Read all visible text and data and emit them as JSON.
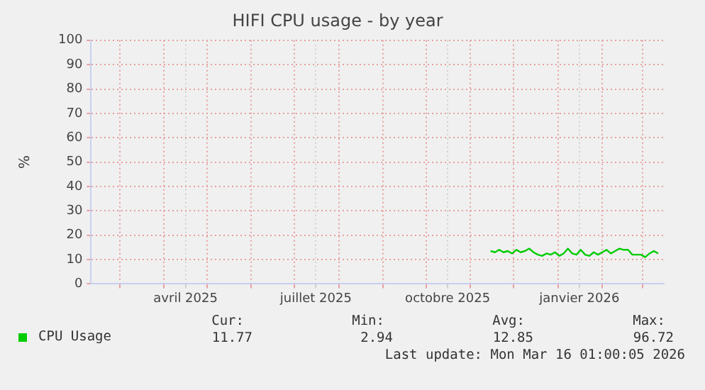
{
  "chart_data": {
    "type": "line",
    "title": "HIFI CPU usage - by year",
    "ylabel": "%",
    "xlim": [
      "2025-02-09",
      "2026-03-16"
    ],
    "xticks": [
      {
        "value": "2025-03-01",
        "label": null
      },
      {
        "value": "2025-04-01",
        "label": null
      },
      {
        "value": "2025-04-16",
        "label": "avril 2025"
      },
      {
        "value": "2025-05-01",
        "label": null
      },
      {
        "value": "2025-06-01",
        "label": null
      },
      {
        "value": "2025-07-01",
        "label": null
      },
      {
        "value": "2025-07-16",
        "label": "juillet 2025"
      },
      {
        "value": "2025-08-01",
        "label": null
      },
      {
        "value": "2025-09-01",
        "label": null
      },
      {
        "value": "2025-10-01",
        "label": null
      },
      {
        "value": "2025-10-16",
        "label": "octobre 2025"
      },
      {
        "value": "2025-11-01",
        "label": null
      },
      {
        "value": "2025-12-01",
        "label": null
      },
      {
        "value": "2026-01-01",
        "label": null
      },
      {
        "value": "2026-01-16",
        "label": "janvier 2026"
      },
      {
        "value": "2026-02-01",
        "label": null
      },
      {
        "value": "2026-03-01",
        "label": null
      }
    ],
    "ylim": [
      0,
      100
    ],
    "yticks": [
      0,
      10,
      20,
      30,
      40,
      50,
      60,
      70,
      80,
      90,
      100
    ],
    "grid": true,
    "legend": "bottom",
    "marker": "none",
    "line_style": "solid",
    "series": [
      {
        "name": "CPU Usage",
        "color": "#00cc00",
        "x": [
          "2025-11-15",
          "2025-11-18",
          "2025-11-21",
          "2025-11-24",
          "2025-11-27",
          "2025-11-30",
          "2025-12-03",
          "2025-12-06",
          "2025-12-09",
          "2025-12-12",
          "2025-12-15",
          "2025-12-18",
          "2025-12-21",
          "2025-12-24",
          "2025-12-27",
          "2025-12-30",
          "2026-01-02",
          "2026-01-05",
          "2026-01-08",
          "2026-01-11",
          "2026-01-14",
          "2026-01-17",
          "2026-01-20",
          "2026-01-23",
          "2026-01-26",
          "2026-01-29",
          "2026-02-01",
          "2026-02-04",
          "2026-02-07",
          "2026-02-10",
          "2026-02-13",
          "2026-02-16",
          "2026-02-19",
          "2026-02-22",
          "2026-02-25",
          "2026-02-28",
          "2026-03-03",
          "2026-03-06",
          "2026-03-09",
          "2026-03-12"
        ],
        "values": [
          13.5,
          13,
          14,
          13,
          13.5,
          12.5,
          14,
          13,
          13.5,
          14.5,
          13,
          12,
          11.5,
          12.5,
          12,
          13,
          11.5,
          12.5,
          14.5,
          12.5,
          12,
          14,
          12,
          11.5,
          13,
          12,
          13,
          14,
          12.5,
          13.5,
          14.5,
          14,
          14,
          12,
          12,
          12,
          11,
          12.5,
          13.5,
          12.5
        ]
      }
    ],
    "annotations": [
      "Cur:",
      "Min:",
      "Avg:",
      "Max:",
      "11.77",
      "2.94",
      "12.85",
      "96.72",
      "Last update: Mon Mar 16 01:00:05 2026"
    ]
  }
}
